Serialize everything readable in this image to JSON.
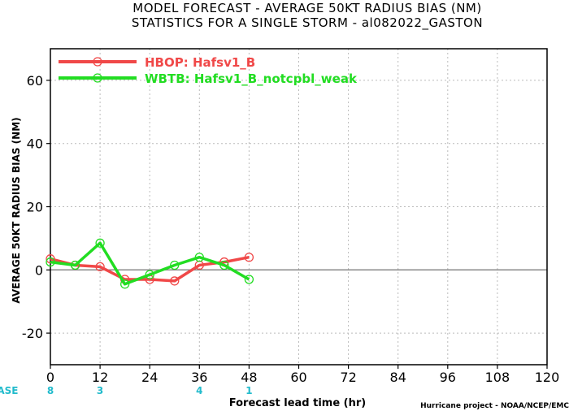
{
  "chart_data": {
    "type": "line",
    "title": "MODEL FORECAST - AVERAGE 50KT RADIUS BIAS (NM)",
    "subtitle": "STATISTICS FOR A SINGLE STORM - al082022_GASTON",
    "xlabel": "Forecast lead time (hr)",
    "ylabel": "AVERAGE 50KT RADIUS BIAS (NM)",
    "xlim": [
      0,
      120
    ],
    "ylim": [
      -30,
      70
    ],
    "x_ticks": [
      0,
      12,
      24,
      36,
      48,
      60,
      72,
      84,
      96,
      108,
      120
    ],
    "y_ticks": [
      -20,
      0,
      20,
      40,
      60
    ],
    "grid": true,
    "legend_position": "top-left",
    "series": [
      {
        "name": "HBOP: Hafsv1_B",
        "color": "#f04848",
        "x": [
          0,
          6,
          12,
          18,
          24,
          30,
          36,
          42,
          48
        ],
        "values": [
          3.5,
          1.5,
          1.0,
          -3.0,
          -3.0,
          -3.5,
          1.5,
          2.5,
          4.0
        ]
      },
      {
        "name": "WBTB: Hafsv1_B_notcpbl_weak",
        "color": "#22dd22",
        "x": [
          0,
          6,
          12,
          18,
          24,
          30,
          36,
          42,
          48
        ],
        "values": [
          2.5,
          1.5,
          8.5,
          -4.5,
          -1.5,
          1.5,
          4.0,
          1.5,
          -3.0
        ]
      }
    ],
    "case_label": "#CASE",
    "case_color": "#22bbcc",
    "case_counts": [
      {
        "x": 0,
        "count": "8"
      },
      {
        "x": 12,
        "count": "3"
      },
      {
        "x": 36,
        "count": "4"
      },
      {
        "x": 48,
        "count": "1"
      }
    ],
    "credit": "Hurricane project - NOAA/NCEP/EMC"
  }
}
